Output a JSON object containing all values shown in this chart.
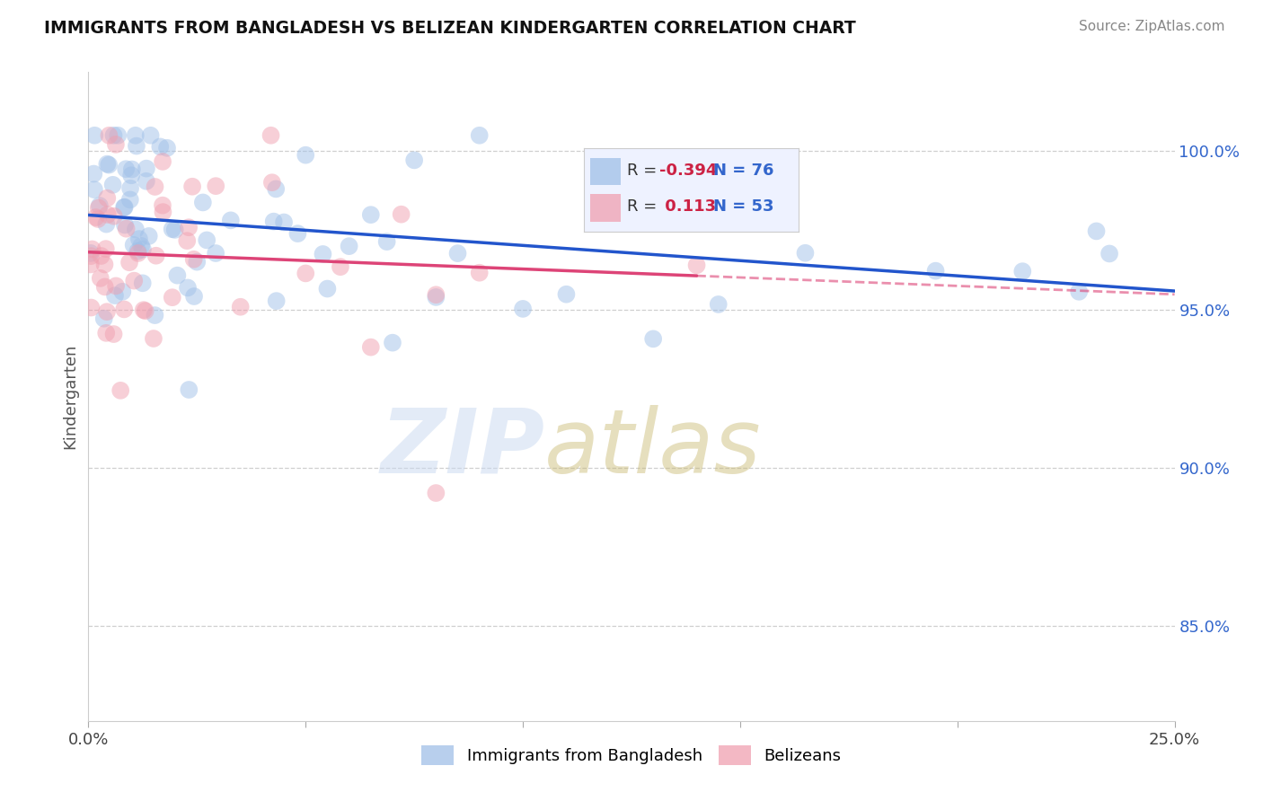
{
  "title": "IMMIGRANTS FROM BANGLADESH VS BELIZEAN KINDERGARTEN CORRELATION CHART",
  "source": "Source: ZipAtlas.com",
  "ylabel": "Kindergarten",
  "xlim": [
    0.0,
    25.0
  ],
  "ylim": [
    82.0,
    102.5
  ],
  "xtick_vals": [
    0.0,
    5.0,
    10.0,
    15.0,
    20.0,
    25.0
  ],
  "xtick_labels": [
    "0.0%",
    "",
    "",
    "",
    "",
    "25.0%"
  ],
  "ytick_vals": [
    85.0,
    90.0,
    95.0,
    100.0
  ],
  "ytick_labels": [
    "85.0%",
    "90.0%",
    "95.0%",
    "100.0%"
  ],
  "blue_color": "#a0c0e8",
  "pink_color": "#f0a0b0",
  "blue_line_color": "#2255cc",
  "pink_line_color": "#dd4477",
  "legend_bg": "#eef2ff",
  "R_blue": -0.394,
  "N_blue": 76,
  "R_pink": 0.113,
  "N_pink": 53,
  "watermark_zip_color": "#c8d8f0",
  "watermark_atlas_color": "#c8b870",
  "title_fontsize": 13.5,
  "source_fontsize": 11,
  "tick_fontsize": 13,
  "legend_fontsize": 13
}
